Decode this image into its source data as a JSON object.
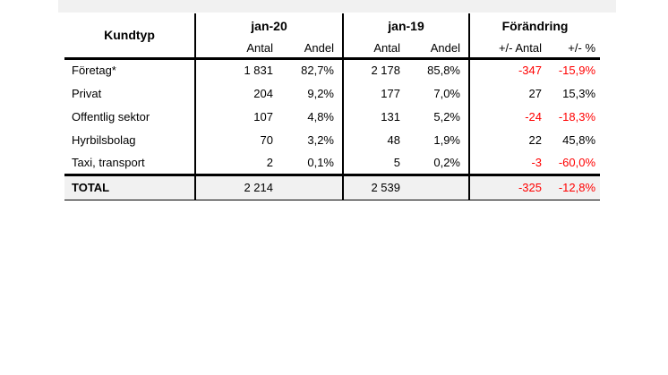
{
  "colors": {
    "negative_text": "#ff0000",
    "stripe_background": "#f1f1f1",
    "border": "#000000"
  },
  "table": {
    "header": {
      "kundtyp_label": "Kundtyp",
      "groups": [
        {
          "label": "jan-20",
          "sub": [
            "Antal",
            "Andel"
          ]
        },
        {
          "label": "jan-19",
          "sub": [
            "Antal",
            "Andel"
          ]
        },
        {
          "label": "Förändring",
          "sub": [
            "+/- Antal",
            "+/- %"
          ]
        }
      ]
    },
    "rows": [
      {
        "cells": [
          "Företag*",
          "1 831",
          "82,7%",
          "2 178",
          "85,8%",
          "-347",
          "-15,9%"
        ]
      },
      {
        "cells": [
          "Privat",
          "204",
          "9,2%",
          "177",
          "7,0%",
          "27",
          "15,3%"
        ]
      },
      {
        "cells": [
          "Offentlig sektor",
          "107",
          "4,8%",
          "131",
          "5,2%",
          "-24",
          "-18,3%"
        ]
      },
      {
        "cells": [
          "Hyrbilsbolag",
          "70",
          "3,2%",
          "48",
          "1,9%",
          "22",
          "45,8%"
        ]
      },
      {
        "cells": [
          "Taxi, transport",
          "2",
          "0,1%",
          "5",
          "0,2%",
          "-3",
          "-60,0%"
        ]
      }
    ],
    "total": {
      "cells": [
        "TOTAL",
        "2 214",
        "",
        "2 539",
        "",
        "-325",
        "-12,8%"
      ]
    }
  }
}
